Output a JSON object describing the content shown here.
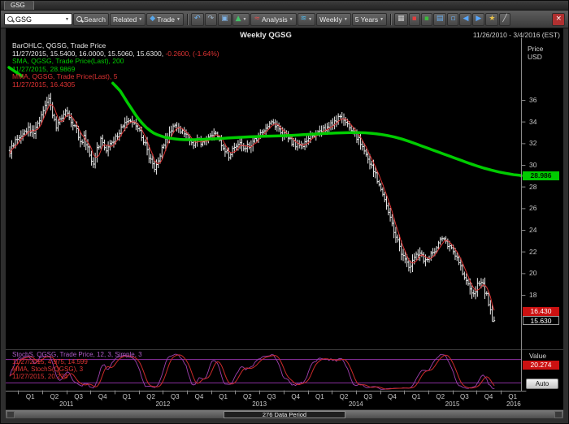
{
  "window": {
    "tab_label": "GSG",
    "title": "Weekly QGSG",
    "date_range": "11/26/2010 - 3/4/2016 (EST)"
  },
  "toolbar": {
    "symbol_value": "GSG",
    "items": [
      {
        "name": "search-button",
        "label": "Search",
        "mag": true
      },
      {
        "name": "related-dropdown",
        "label": "Related",
        "caret": true
      },
      {
        "name": "trade-dropdown",
        "label": "Trade",
        "glyph": "◆",
        "glyph_color": "#58a6e8",
        "icon": "trade-icon",
        "caret": true
      },
      {
        "type": "separator"
      },
      {
        "name": "undo-button",
        "glyph": "↶",
        "glyph_color": "#6db3f2",
        "icon": "undo-icon"
      },
      {
        "name": "redo-button",
        "glyph": "↷",
        "glyph_color": "#9fb6c9",
        "icon": "redo-icon"
      },
      {
        "name": "copy-chart-button",
        "glyph": "▣",
        "glyph_color": "#7fb2e5",
        "icon": "copy-icon"
      },
      {
        "name": "chart-style-dropdown",
        "glyph": "▲",
        "glyph_color": "#46c06a",
        "icon": "chart-style-icon",
        "caret": true
      },
      {
        "name": "analysis-dropdown",
        "label": "Analysis",
        "glyph": "≈",
        "glyph_color": "#e05050",
        "icon": "analysis-icon",
        "caret": true
      },
      {
        "name": "indicators-dropdown",
        "glyph": "≋",
        "glyph_color": "#52b9e9",
        "icon": "indicators-icon",
        "caret": true
      },
      {
        "name": "period-dropdown",
        "label": "Weekly",
        "caret": true
      },
      {
        "name": "range-dropdown",
        "label": "5 Years",
        "caret": true
      },
      {
        "type": "separator"
      },
      {
        "name": "grid-toggle-button",
        "glyph": "▦",
        "glyph_color": "#cccccc",
        "icon": "grid-icon"
      },
      {
        "name": "sell-marker-button",
        "glyph": "▪",
        "glyph_color": "#e04040",
        "icon": "red-square-icon"
      },
      {
        "name": "buy-marker-button",
        "glyph": "▪",
        "glyph_color": "#3dbb3d",
        "icon": "green-square-icon"
      },
      {
        "name": "layout-button",
        "glyph": "▤",
        "glyph_color": "#6ab0f3",
        "icon": "layout-icon"
      },
      {
        "name": "new-window-button",
        "glyph": "▫",
        "glyph_color": "#6ab0f3",
        "icon": "window-icon"
      },
      {
        "name": "back-button",
        "glyph": "◀",
        "glyph_color": "#5aa8ff",
        "icon": "back-arrow-icon"
      },
      {
        "name": "forward-button",
        "glyph": "▶",
        "glyph_color": "#5aa8ff",
        "icon": "forward-arrow-icon"
      },
      {
        "name": "flag-button",
        "glyph": "★",
        "glyph_color": "#e8c34a",
        "icon": "star-icon"
      },
      {
        "name": "trendline-button",
        "glyph": "╱",
        "glyph_color": "#cccccc",
        "icon": "trendline-icon"
      },
      {
        "name": "close-chart-button",
        "glyph": "×",
        "glyph_color": "#ffffff",
        "bg": "#b03030",
        "push_right": true,
        "icon": "close-icon"
      }
    ]
  },
  "legend_main": {
    "line1": "BarOHLC, QGSG, Trade Price",
    "line2_values": "11/27/2015, 15.5400, 16.0000, 15.5060, 15.6300, ",
    "line2_change": "-0.2600, (-1.64%)",
    "line3": "SMA, QGSG, Trade Price(Last), 200",
    "line4": "11/27/2015, 28.9869",
    "line5": "MMA, QGSG, Trade Price(Last), 5",
    "line6": "11/27/2015, 16.4305"
  },
  "legend_stoch": {
    "line1": "StochS, QGSG, Trade Price, 12, 3, Simple, 3",
    "line2": "11/27/2015, 4.975, 14.599",
    "line3": "MMA, StochS(QGSG), 3",
    "line4": "11/27/2015, 20.274"
  },
  "axis": {
    "price_label_line1": "Price",
    "price_label_line2": "USD",
    "value_label": "Value",
    "auto_button": "Auto",
    "badges": {
      "sma": "28.986",
      "mma": "16.430",
      "last": "15.630",
      "stoch": "20.274"
    }
  },
  "bottom": {
    "period_label": "276 Data Period"
  },
  "chart_data": {
    "type": "ohlc",
    "title": "Weekly QGSG",
    "symbol": "QGSG",
    "timeframe": "Weekly",
    "date_range": [
      "11/26/2010",
      "3/4/2016"
    ],
    "weeks_total": 276,
    "bars_end_week": 261,
    "ylim": [
      13.2,
      40.8
    ],
    "yticks": [
      18,
      20,
      22,
      24,
      26,
      28,
      30,
      32,
      34,
      36
    ],
    "ylabel": "Price USD",
    "last_bar": {
      "date": "11/27/2015",
      "open": 15.54,
      "high": 16.0,
      "low": 15.506,
      "close": 15.63,
      "change": -0.26,
      "change_pct": -1.64
    },
    "series": [
      {
        "name": "BarOHLC QGSG Trade Price",
        "type": "ohlc_bars",
        "color": "#e8e8e8"
      },
      {
        "name": "SMA 200",
        "type": "line",
        "color": "#00cc00",
        "last": 28.9869
      },
      {
        "name": "MMA 5",
        "type": "line",
        "color": "#e03333",
        "last": 16.4305
      }
    ],
    "sma200_last": 28.9869,
    "mma5_last": 16.4305,
    "close_anchors": [
      [
        0,
        31.3
      ],
      [
        3,
        32.2
      ],
      [
        6,
        32.8
      ],
      [
        10,
        33.4
      ],
      [
        13,
        33.0
      ],
      [
        16,
        34.3
      ],
      [
        19,
        35.6
      ],
      [
        21,
        36.3
      ],
      [
        23,
        34.8
      ],
      [
        25,
        33.6
      ],
      [
        27,
        34.4
      ],
      [
        30,
        34.8
      ],
      [
        33,
        34.0
      ],
      [
        36,
        33.2
      ],
      [
        38,
        31.9
      ],
      [
        40,
        32.6
      ],
      [
        43,
        31.0
      ],
      [
        45,
        29.9
      ],
      [
        47,
        31.4
      ],
      [
        49,
        32.2
      ],
      [
        52,
        31.4
      ],
      [
        55,
        32.1
      ],
      [
        58,
        32.8
      ],
      [
        61,
        33.6
      ],
      [
        64,
        34.3
      ],
      [
        67,
        34.0
      ],
      [
        70,
        33.2
      ],
      [
        73,
        31.9
      ],
      [
        76,
        30.3
      ],
      [
        78,
        29.7
      ],
      [
        80,
        30.6
      ],
      [
        83,
        31.8
      ],
      [
        86,
        32.9
      ],
      [
        89,
        33.6
      ],
      [
        92,
        33.2
      ],
      [
        95,
        32.6
      ],
      [
        98,
        31.9
      ],
      [
        101,
        32.2
      ],
      [
        104,
        32.1
      ],
      [
        107,
        32.6
      ],
      [
        110,
        33.1
      ],
      [
        113,
        32.3
      ],
      [
        116,
        31.4
      ],
      [
        118,
        30.9
      ],
      [
        121,
        31.6
      ],
      [
        124,
        32.0
      ],
      [
        127,
        31.6
      ],
      [
        130,
        31.9
      ],
      [
        133,
        32.4
      ],
      [
        136,
        33.1
      ],
      [
        139,
        33.6
      ],
      [
        142,
        33.8
      ],
      [
        145,
        33.2
      ],
      [
        148,
        32.7
      ],
      [
        151,
        32.3
      ],
      [
        154,
        31.9
      ],
      [
        157,
        31.6
      ],
      [
        160,
        32.2
      ],
      [
        163,
        32.7
      ],
      [
        166,
        33.0
      ],
      [
        169,
        33.3
      ],
      [
        172,
        33.6
      ],
      [
        175,
        33.9
      ],
      [
        178,
        34.5
      ],
      [
        180,
        34.2
      ],
      [
        183,
        33.6
      ],
      [
        186,
        32.9
      ],
      [
        189,
        32.0
      ],
      [
        192,
        30.9
      ],
      [
        195,
        29.9
      ],
      [
        198,
        28.6
      ],
      [
        201,
        27.4
      ],
      [
        204,
        25.8
      ],
      [
        207,
        23.9
      ],
      [
        210,
        22.4
      ],
      [
        213,
        21.1
      ],
      [
        215,
        20.6
      ],
      [
        218,
        21.4
      ],
      [
        221,
        21.9
      ],
      [
        223,
        21.2
      ],
      [
        226,
        21.6
      ],
      [
        229,
        22.1
      ],
      [
        232,
        22.9
      ],
      [
        234,
        23.1
      ],
      [
        237,
        22.4
      ],
      [
        240,
        21.6
      ],
      [
        243,
        20.6
      ],
      [
        246,
        19.4
      ],
      [
        248,
        18.3
      ],
      [
        250,
        17.9
      ],
      [
        252,
        19.0
      ],
      [
        254,
        19.4
      ],
      [
        256,
        18.4
      ],
      [
        258,
        17.3
      ],
      [
        260,
        16.3
      ],
      [
        261,
        15.63
      ]
    ],
    "sma200_start": [
      [
        0,
        39.0
      ],
      [
        7,
        38.2
      ]
    ],
    "sma200_anchors": [
      [
        56,
        37.9
      ],
      [
        62,
        36.3
      ],
      [
        68,
        34.6
      ],
      [
        74,
        33.3
      ],
      [
        80,
        32.7
      ],
      [
        88,
        32.4
      ],
      [
        96,
        32.3
      ],
      [
        110,
        32.4
      ],
      [
        130,
        32.6
      ],
      [
        150,
        32.7
      ],
      [
        170,
        32.9
      ],
      [
        185,
        33.0
      ],
      [
        195,
        32.95
      ],
      [
        205,
        32.7
      ],
      [
        212,
        32.4
      ],
      [
        220,
        31.9
      ],
      [
        228,
        31.4
      ],
      [
        236,
        30.9
      ],
      [
        244,
        30.4
      ],
      [
        252,
        29.9
      ],
      [
        260,
        29.5
      ],
      [
        268,
        29.2
      ],
      [
        276,
        28.99
      ]
    ],
    "stoch_panel": {
      "name": "StochS 12,3 Simple,3",
      "ylim": [
        0,
        100
      ],
      "guides": [
        20,
        80
      ],
      "k_last": 4.975,
      "d_last": 14.599,
      "mma_last": 20.274,
      "k_color": "#a040b0",
      "mma_color": "#cc2a2a",
      "guide_color": "#8b2fa0"
    },
    "xaxis": {
      "quarters": [
        {
          "week": 5,
          "label": "Q1"
        },
        {
          "week": 18,
          "label": "Q2"
        },
        {
          "week": 31,
          "label": "Q3"
        },
        {
          "week": 44,
          "label": "Q4"
        },
        {
          "week": 57,
          "label": "Q1"
        },
        {
          "week": 70,
          "label": "Q2"
        },
        {
          "week": 83,
          "label": "Q3"
        },
        {
          "week": 96,
          "label": "Q4"
        },
        {
          "week": 109,
          "label": "Q1"
        },
        {
          "week": 122,
          "label": "Q2"
        },
        {
          "week": 135,
          "label": "Q3"
        },
        {
          "week": 148,
          "label": "Q4"
        },
        {
          "week": 161,
          "label": "Q1"
        },
        {
          "week": 174,
          "label": "Q2"
        },
        {
          "week": 187,
          "label": "Q3"
        },
        {
          "week": 200,
          "label": "Q4"
        },
        {
          "week": 213,
          "label": "Q1"
        },
        {
          "week": 226,
          "label": "Q2"
        },
        {
          "week": 239,
          "label": "Q3"
        },
        {
          "week": 252,
          "label": "Q4"
        },
        {
          "week": 265,
          "label": "Q1"
        }
      ],
      "years": [
        {
          "week": 31,
          "label": "2011"
        },
        {
          "week": 83,
          "label": "2012"
        },
        {
          "week": 135,
          "label": "2013"
        },
        {
          "week": 187,
          "label": "2014"
        },
        {
          "week": 239,
          "label": "2015"
        },
        {
          "week": 272,
          "label": "2016"
        }
      ]
    },
    "style": {
      "bar": "#e8e8e8",
      "green": "#00cc00",
      "red": "#dd3333",
      "axis_line": "#8a8a8a",
      "panel_sep": "#3a3a3a",
      "tick_text": "#c8c8c8"
    }
  }
}
